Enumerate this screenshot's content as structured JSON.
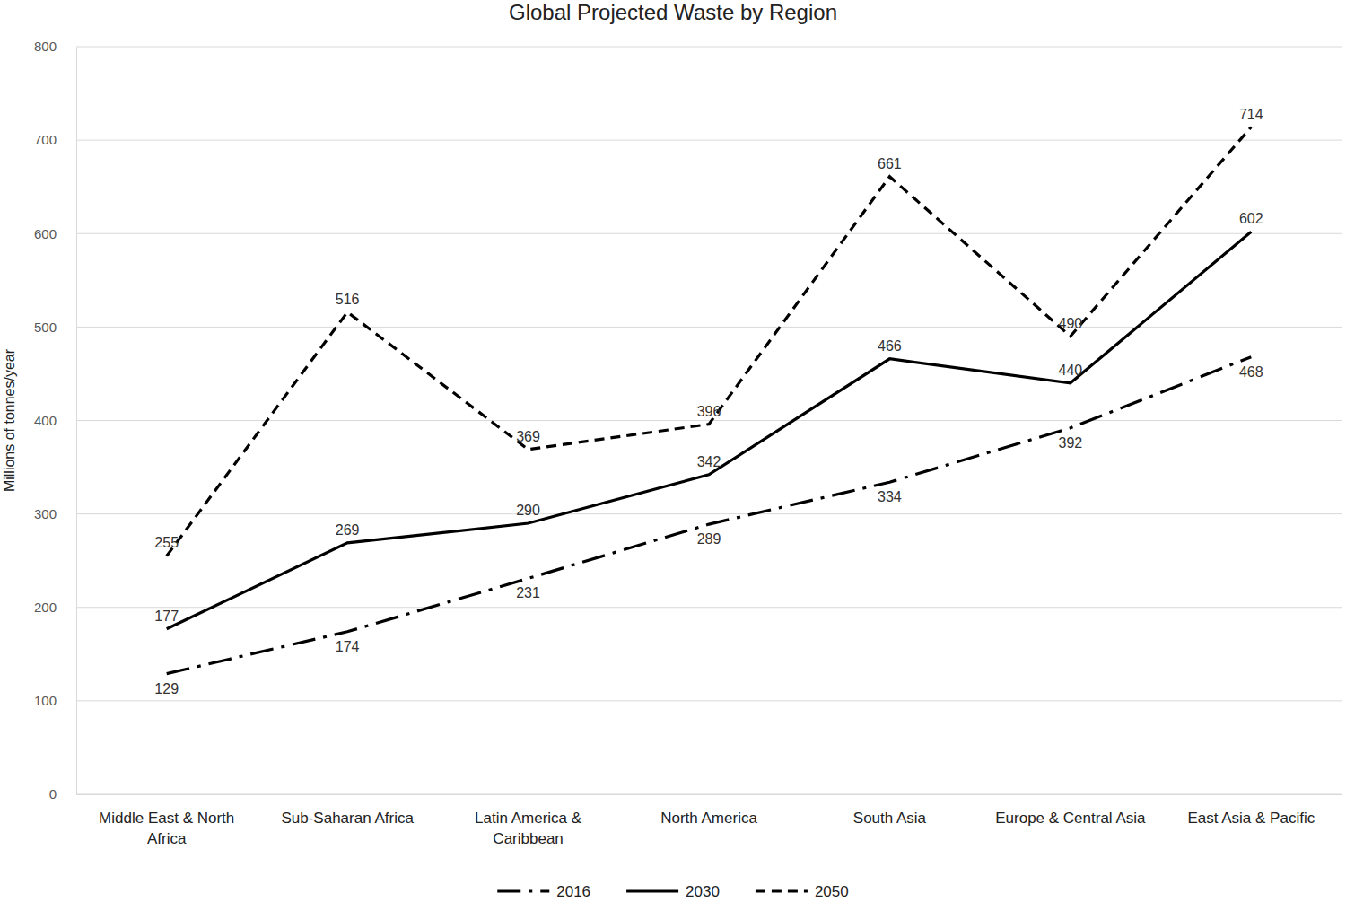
{
  "chart_data": {
    "type": "line",
    "title": "Global Projected Waste by Region",
    "y_label": "Millions of tonnes/year",
    "categories": [
      "Middle East & North Africa",
      "Sub-Saharan Africa",
      "Latin America & Caribbean",
      "North America",
      "South Asia",
      "Europe & Central Asia",
      "East Asia & Pacific"
    ],
    "series": [
      {
        "name": "2016",
        "color": "#000000",
        "line_style": "dashdot",
        "values": [
          129,
          174,
          231,
          289,
          334,
          392,
          468
        ]
      },
      {
        "name": "2030",
        "color": "#000000",
        "line_style": "solid",
        "values": [
          177,
          269,
          290,
          342,
          466,
          440,
          602
        ]
      },
      {
        "name": "2050",
        "color": "#000000",
        "line_style": "dashed",
        "values": [
          255,
          516,
          369,
          396,
          661,
          490,
          714
        ]
      }
    ],
    "ylim": [
      0,
      800
    ],
    "yticks": [
      0,
      100,
      200,
      300,
      400,
      500,
      600,
      700,
      800
    ],
    "grid": true,
    "legend": "bottom",
    "data_labels": true
  }
}
